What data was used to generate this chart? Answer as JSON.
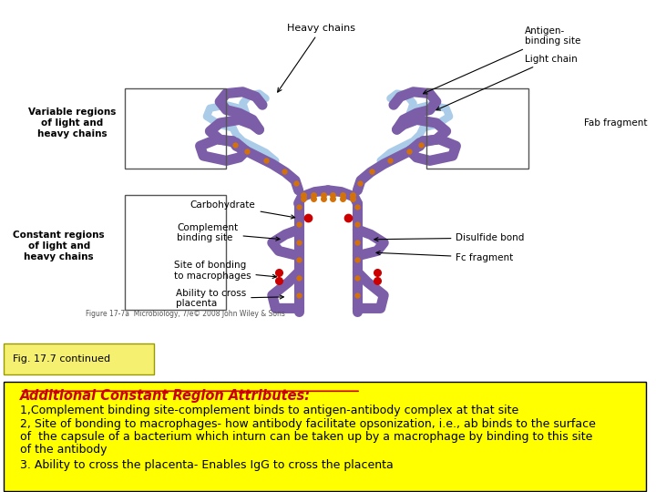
{
  "fig_width": 7.2,
  "fig_height": 5.4,
  "dpi": 100,
  "bg_color": "#ffffff",
  "heavy_color": "#7b5ea7",
  "light_color": "#aacce8",
  "disulf_color": "#d4720a",
  "red_color": "#cc0000",
  "caption_box": {
    "text": "Fig. 17.7 continued",
    "fontsize": 8,
    "facecolor": "#f5f070",
    "edgecolor": "#999900"
  },
  "yellow_box": {
    "facecolor": "#ffff00",
    "edgecolor": "#000000",
    "linewidth": 1.0
  },
  "title_text": {
    "text": "Additional Constant Region Attributes:",
    "fontsize": 10.5,
    "color": "#cc0000",
    "fontweight": "bold",
    "fontstyle": "italic"
  },
  "body_lines": [
    "1,Complement binding site-complement binds to antigen-antibody complex at that site",
    "2, Site of bonding to macrophages- how antibody facilitate opsonization, i.e., ab binds to the surface",
    "of  the capsule of a bacterium which inturn can be taken up by a macrophage by binding to this site",
    "of the antibody",
    "3. Ability to cross the placenta- Enables IgG to cross the placenta"
  ],
  "body_fontsize": 9.0,
  "figure_caption_text": "Figure 17-7a  Microbiology, 7/e© 2008 John Wiley & Sons",
  "figure_caption_fontsize": 5.5,
  "labels": {
    "heavy_chains": "Heavy chains",
    "antigen_binding": "Antigen-\nbinding site",
    "light_chain": "Light chain",
    "variable_regions": "Variable regions\nof light and\nheavy chains",
    "fab_fragment": "Fab fragment",
    "constant_regions": "Constant regions\nof light and\nheavy chains",
    "carbohydrate": "Carbohydrate",
    "complement": "Complement\nbinding site",
    "disulfide": "Disulfide bond",
    "fc_fragment": "Fc fragment",
    "macrophages": "Site of bonding\nto macrophages",
    "placenta": "Ability to cross\nplacenta"
  },
  "label_fontsize": 7.5
}
